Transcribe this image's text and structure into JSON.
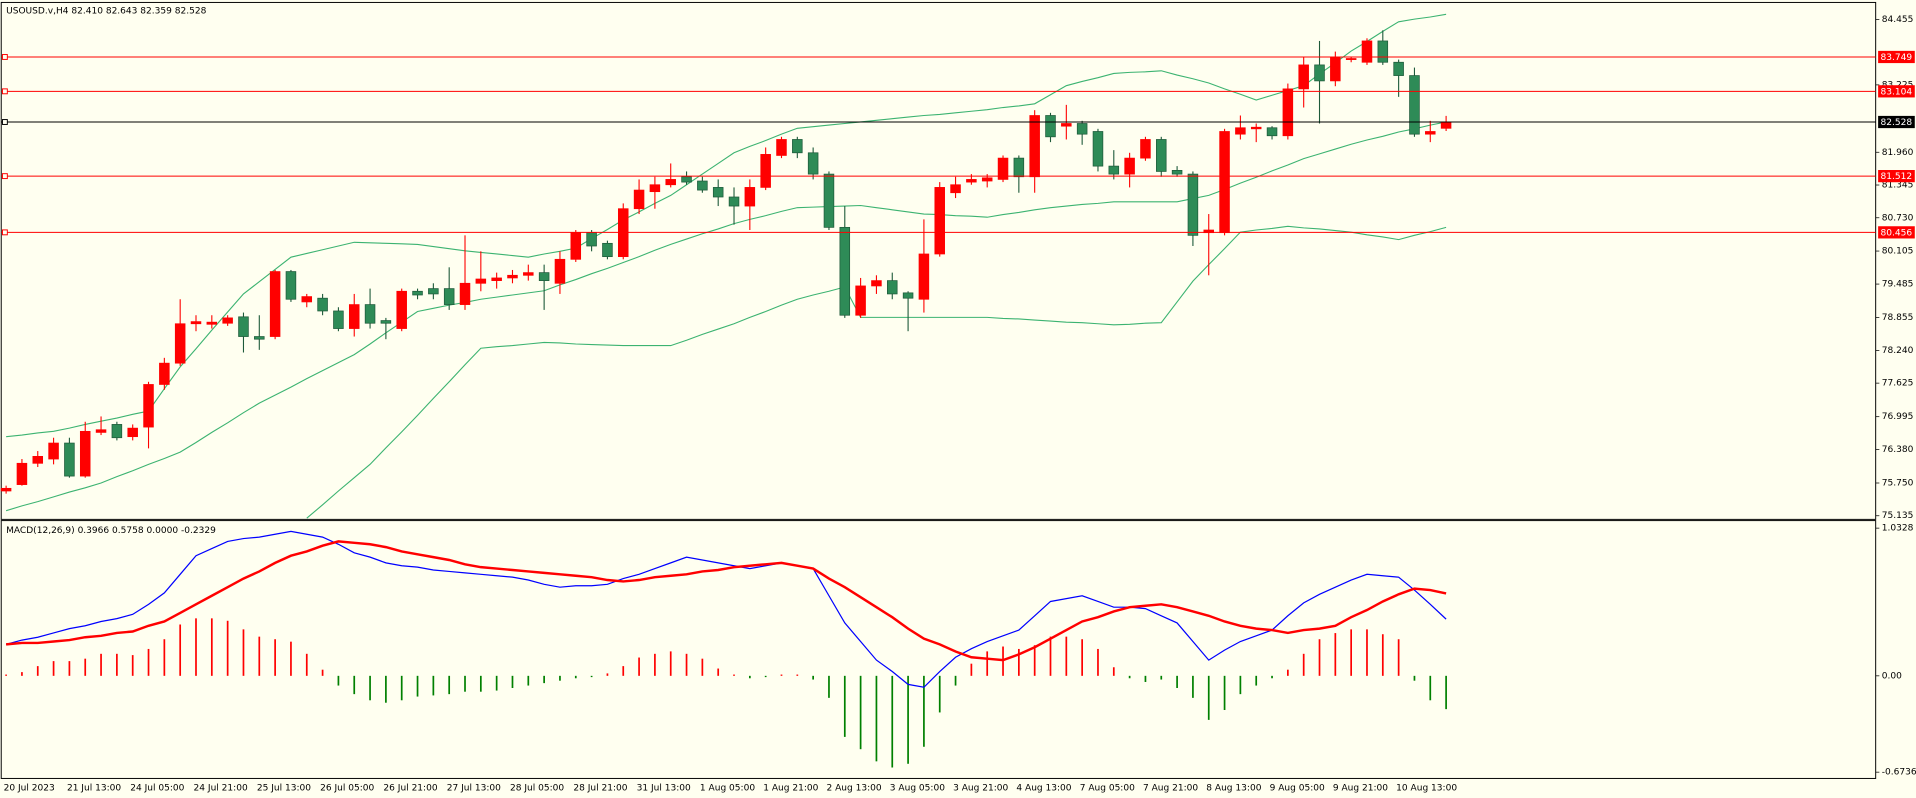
{
  "chart_data": [
    {
      "type": "candlestick",
      "title": "USOUSD.v,H4  82.410 82.643 82.359 82.528",
      "categories": [
        "20 Jul 2023",
        null,
        null,
        null,
        "21 Jul 13:00",
        null,
        null,
        null,
        "24 Jul 05:00",
        null,
        null,
        null,
        "24 Jul 21:00",
        null,
        null,
        null,
        "25 Jul 13:00",
        null,
        null,
        null,
        "26 Jul 05:00",
        null,
        null,
        null,
        "26 Jul 21:00",
        null,
        null,
        null,
        "27 Jul 13:00",
        null,
        null,
        null,
        "28 Jul 05:00",
        null,
        null,
        null,
        "28 Jul 21:00",
        null,
        null,
        null,
        "31 Jul 13:00",
        null,
        null,
        null,
        "1 Aug 05:00",
        null,
        null,
        null,
        "1 Aug 21:00",
        null,
        null,
        null,
        "2 Aug 13:00",
        null,
        null,
        null,
        "3 Aug 05:00",
        null,
        null,
        null,
        "3 Aug 21:00",
        null,
        null,
        null,
        "4 Aug 13:00",
        null,
        null,
        null,
        "7 Aug 05:00",
        null,
        null,
        null,
        "7 Aug 21:00",
        null,
        null,
        null,
        "8 Aug 13:00",
        null,
        null,
        null,
        "9 Aug 05:00",
        null,
        null,
        null,
        "9 Aug 21:00",
        null,
        null,
        null,
        "10 Aug 13:00",
        null,
        null,
        null
      ],
      "open": [
        75.6,
        75.72,
        76.12,
        76.2,
        76.5,
        75.88,
        76.7,
        76.85,
        76.62,
        76.8,
        77.6,
        78.0,
        78.74,
        78.73,
        78.75,
        78.87,
        78.5,
        78.5,
        79.72,
        79.15,
        79.22,
        78.98,
        78.65,
        79.1,
        78.8,
        78.65,
        79.35,
        79.4,
        79.4,
        79.1,
        79.5,
        79.55,
        79.6,
        79.65,
        79.7,
        79.5,
        79.95,
        80.45,
        80.25,
        80.0,
        80.9,
        81.22,
        81.35,
        81.5,
        81.42,
        81.3,
        81.12,
        80.95,
        81.3,
        81.9,
        82.2,
        81.95,
        81.55,
        80.55,
        78.9,
        79.45,
        79.55,
        79.32,
        79.2,
        80.05,
        81.2,
        81.4,
        81.42,
        81.45,
        81.85,
        81.5,
        82.65,
        82.45,
        82.5,
        82.35,
        81.7,
        81.55,
        81.85,
        82.2,
        81.62,
        81.55,
        80.45,
        80.45,
        82.3,
        82.4,
        82.42,
        82.27,
        83.15,
        83.6,
        83.3,
        83.7,
        83.65,
        84.05,
        83.65,
        83.4,
        82.3,
        82.41
      ],
      "high": [
        75.7,
        76.2,
        76.35,
        76.6,
        76.6,
        76.9,
        77.0,
        76.9,
        76.85,
        77.65,
        78.1,
        79.2,
        78.9,
        78.9,
        78.9,
        78.95,
        78.9,
        79.75,
        79.75,
        79.3,
        79.3,
        79.05,
        79.3,
        79.4,
        78.85,
        79.4,
        79.4,
        79.5,
        79.8,
        80.4,
        80.1,
        79.7,
        79.75,
        79.85,
        79.85,
        80.1,
        80.5,
        80.5,
        80.3,
        81.0,
        81.45,
        81.5,
        81.75,
        81.6,
        81.5,
        81.45,
        81.3,
        81.45,
        82.05,
        82.25,
        82.25,
        82.05,
        81.6,
        80.95,
        79.6,
        79.65,
        79.7,
        79.35,
        80.7,
        81.4,
        81.5,
        81.55,
        81.55,
        81.9,
        81.9,
        82.75,
        82.7,
        82.85,
        82.55,
        82.4,
        82.0,
        81.95,
        82.25,
        82.25,
        81.7,
        81.6,
        80.8,
        82.4,
        82.65,
        82.5,
        82.45,
        83.25,
        83.75,
        84.05,
        83.85,
        83.75,
        84.1,
        84.25,
        83.7,
        83.55,
        82.55,
        82.643
      ],
      "low": [
        75.55,
        75.7,
        76.05,
        76.1,
        75.85,
        75.85,
        76.65,
        76.55,
        76.55,
        76.4,
        77.5,
        77.95,
        78.6,
        78.65,
        78.7,
        78.2,
        78.25,
        78.45,
        79.15,
        79.05,
        78.9,
        78.6,
        78.5,
        78.65,
        78.45,
        78.6,
        79.2,
        79.2,
        79.0,
        79.0,
        79.35,
        79.4,
        79.5,
        79.55,
        79.0,
        79.3,
        79.9,
        80.1,
        79.95,
        79.95,
        80.8,
        80.9,
        81.3,
        81.35,
        81.2,
        80.95,
        80.6,
        80.5,
        81.25,
        81.85,
        81.85,
        81.45,
        80.5,
        78.85,
        78.85,
        79.3,
        79.2,
        78.6,
        78.95,
        80.0,
        81.1,
        81.35,
        81.3,
        81.4,
        81.2,
        81.2,
        82.15,
        82.2,
        82.1,
        81.6,
        81.45,
        81.3,
        81.8,
        81.5,
        81.5,
        80.2,
        79.65,
        80.4,
        82.2,
        82.15,
        82.2,
        82.2,
        82.8,
        82.5,
        83.2,
        83.65,
        83.6,
        83.6,
        83.0,
        82.25,
        82.15,
        82.359
      ],
      "close": [
        75.65,
        76.12,
        76.25,
        76.5,
        75.88,
        76.72,
        76.75,
        76.6,
        76.78,
        77.6,
        78.0,
        78.74,
        78.78,
        78.77,
        78.85,
        78.5,
        78.45,
        79.72,
        79.2,
        79.25,
        78.98,
        78.65,
        79.1,
        78.75,
        78.75,
        79.35,
        79.28,
        79.3,
        79.1,
        79.5,
        79.58,
        79.6,
        79.65,
        79.7,
        79.55,
        79.95,
        80.45,
        80.2,
        80.0,
        80.9,
        81.25,
        81.35,
        81.45,
        81.4,
        81.25,
        81.12,
        80.95,
        81.3,
        81.92,
        82.2,
        81.95,
        81.55,
        80.55,
        78.9,
        79.45,
        79.55,
        79.3,
        79.22,
        80.05,
        81.3,
        81.35,
        81.45,
        81.48,
        81.85,
        81.5,
        82.65,
        82.25,
        82.5,
        82.3,
        81.7,
        81.55,
        81.85,
        82.2,
        81.6,
        81.55,
        80.4,
        80.5,
        82.35,
        82.42,
        82.43,
        82.27,
        83.15,
        83.6,
        83.3,
        83.75,
        83.72,
        84.05,
        83.65,
        83.4,
        82.3,
        82.35,
        82.528
      ],
      "up_color": "#ff0000",
      "down_color": "#2e8b57",
      "overlays": [
        {
          "color": "#3cb371",
          "values": [
            76.62,
            76.65,
            76.69,
            76.72,
            76.78,
            76.85,
            76.91,
            76.97,
            77.04,
            77.1,
            77.52,
            77.93,
            78.27,
            78.62,
            78.96,
            79.3,
            79.53,
            79.76,
            79.99,
            80.06,
            80.13,
            80.2,
            80.27,
            80.26,
            80.25,
            80.24,
            80.23,
            80.19,
            80.15,
            80.11,
            80.08,
            80.05,
            80.02,
            79.99,
            80.05,
            80.1,
            80.16,
            80.34,
            80.51,
            80.69,
            80.84,
            81.0,
            81.15,
            81.35,
            81.55,
            81.75,
            81.95,
            82.07,
            82.18,
            82.3,
            82.41,
            82.44,
            82.47,
            82.5,
            82.53,
            82.56,
            82.59,
            82.62,
            82.65,
            82.67,
            82.7,
            82.73,
            82.76,
            82.8,
            82.83,
            82.87,
            83.04,
            83.21,
            83.29,
            83.36,
            83.44,
            83.46,
            83.47,
            83.49,
            83.41,
            83.34,
            83.26,
            83.15,
            83.05,
            82.94,
            83.03,
            83.12,
            83.21,
            83.43,
            83.64,
            83.86,
            84.04,
            84.23,
            84.41,
            84.46,
            84.5,
            84.55
          ]
        },
        {
          "color": "#3cb371",
          "values": [
            75.23,
            75.32,
            75.4,
            75.49,
            75.58,
            75.66,
            75.75,
            75.87,
            75.98,
            76.1,
            76.21,
            76.33,
            76.51,
            76.7,
            76.88,
            77.07,
            77.25,
            77.4,
            77.55,
            77.71,
            77.86,
            78.01,
            78.16,
            78.36,
            78.57,
            78.77,
            78.97,
            79.03,
            79.09,
            79.14,
            79.2,
            79.24,
            79.28,
            79.32,
            79.36,
            79.47,
            79.57,
            79.68,
            79.78,
            79.89,
            80.0,
            80.12,
            80.23,
            80.33,
            80.43,
            80.52,
            80.62,
            80.7,
            80.77,
            80.85,
            80.92,
            80.93,
            80.94,
            80.95,
            80.96,
            80.92,
            80.88,
            80.84,
            80.8,
            80.79,
            80.77,
            80.76,
            80.74,
            80.79,
            80.83,
            80.88,
            80.92,
            80.95,
            80.98,
            81.0,
            81.03,
            81.03,
            81.03,
            81.03,
            81.03,
            81.09,
            81.15,
            81.26,
            81.38,
            81.49,
            81.61,
            81.72,
            81.84,
            81.93,
            82.02,
            82.11,
            82.19,
            82.26,
            82.34,
            82.4,
            82.47,
            82.53
          ]
        },
        {
          "color": "#3cb371",
          "values": [
            null,
            null,
            null,
            null,
            null,
            null,
            null,
            null,
            null,
            null,
            null,
            null,
            null,
            null,
            null,
            null,
            null,
            null,
            null,
            75.09,
            75.34,
            75.6,
            75.85,
            76.1,
            76.41,
            76.71,
            77.02,
            77.34,
            77.65,
            77.97,
            78.28,
            78.31,
            78.33,
            78.36,
            78.39,
            78.38,
            78.36,
            78.35,
            78.34,
            78.33,
            78.33,
            78.33,
            78.33,
            78.43,
            78.54,
            78.64,
            78.74,
            78.86,
            78.97,
            79.09,
            79.2,
            79.28,
            79.35,
            79.43,
            78.86,
            78.86,
            78.86,
            78.86,
            78.86,
            78.86,
            78.86,
            78.86,
            78.86,
            78.84,
            78.83,
            78.81,
            78.79,
            78.77,
            78.76,
            78.74,
            78.72,
            78.73,
            78.75,
            78.76,
            79.15,
            79.54,
            79.85,
            80.15,
            80.46,
            80.5,
            80.53,
            80.57,
            80.54,
            80.52,
            80.49,
            80.46,
            80.41,
            80.37,
            80.32,
            80.4,
            80.47,
            80.55
          ]
        }
      ],
      "levels": [
        {
          "value": 83.749,
          "color": "#ff0000"
        },
        {
          "value": 83.104,
          "color": "#ff0000"
        },
        {
          "value": 82.528,
          "color": "#000000"
        },
        {
          "value": 81.512,
          "color": "#ff0000"
        },
        {
          "value": 80.456,
          "color": "#ff0000"
        }
      ],
      "ylim": [
        75.09,
        84.75
      ],
      "yticks": [
        84.455,
        83.225,
        {
          "value": 81.96,
          "label": "81.960"
        },
        81.345,
        {
          "value": 80.73,
          "label": "80.730"
        },
        80.105,
        79.485,
        78.855,
        {
          "value": 78.24,
          "label": "78.240"
        },
        77.625,
        76.995,
        {
          "value": 76.38,
          "label": "76.380"
        },
        {
          "value": 75.75,
          "label": "75.750"
        },
        75.135
      ]
    },
    {
      "type": "macd",
      "title": "MACD(12,26,9) 0.3966 0.5758 0.0000 -0.2329",
      "histogram": {
        "up_color": "#ff0000",
        "down_color": "#008000",
        "values": [
          0.009,
          0.026,
          0.068,
          0.103,
          0.103,
          0.12,
          0.154,
          0.154,
          0.145,
          0.188,
          0.256,
          0.359,
          0.402,
          0.402,
          0.385,
          0.325,
          0.274,
          0.256,
          0.239,
          0.154,
          0.043,
          -0.068,
          -0.128,
          -0.171,
          -0.188,
          -0.171,
          -0.145,
          -0.137,
          -0.128,
          -0.111,
          -0.111,
          -0.103,
          -0.085,
          -0.068,
          -0.051,
          -0.034,
          -0.017,
          -0.009,
          0.017,
          0.068,
          0.128,
          0.154,
          0.171,
          0.154,
          0.12,
          0.051,
          0.009,
          -0.017,
          -0.009,
          0.009,
          0.009,
          -0.026,
          -0.154,
          -0.427,
          -0.513,
          -0.598,
          -0.641,
          -0.615,
          -0.496,
          -0.256,
          -0.068,
          0.085,
          0.171,
          0.205,
          0.188,
          0.214,
          0.274,
          0.274,
          0.256,
          0.188,
          0.06,
          -0.017,
          -0.043,
          -0.026,
          -0.085,
          -0.154,
          -0.308,
          -0.239,
          -0.128,
          -0.068,
          -0.017,
          0.043,
          0.154,
          0.256,
          0.299,
          0.325,
          0.325,
          0.291,
          0.256,
          -0.034,
          -0.171,
          -0.2329
        ]
      },
      "series": [
        {
          "color": "#0000ff",
          "width": 1,
          "values": [
            0.22,
            0.25,
            0.27,
            0.3,
            0.33,
            0.35,
            0.38,
            0.4,
            0.43,
            0.5,
            0.58,
            0.71,
            0.84,
            0.89,
            0.94,
            0.96,
            0.97,
            0.99,
            1.01,
            0.99,
            0.97,
            0.92,
            0.86,
            0.83,
            0.79,
            0.77,
            0.76,
            0.74,
            0.73,
            0.72,
            0.71,
            0.7,
            0.69,
            0.67,
            0.64,
            0.62,
            0.63,
            0.63,
            0.64,
            0.68,
            0.71,
            0.75,
            0.79,
            0.83,
            0.81,
            0.79,
            0.77,
            0.75,
            0.77,
            0.79,
            0.77,
            0.75,
            0.56,
            0.37,
            0.24,
            0.11,
            0.03,
            -0.06,
            -0.08,
            0.03,
            0.13,
            0.19,
            0.24,
            0.28,
            0.32,
            0.42,
            0.52,
            0.54,
            0.56,
            0.52,
            0.48,
            0.48,
            0.47,
            0.42,
            0.37,
            0.24,
            0.11,
            0.18,
            0.24,
            0.28,
            0.32,
            0.42,
            0.51,
            0.57,
            0.62,
            0.67,
            0.71,
            0.7,
            0.69,
            0.6,
            0.5,
            0.3966
          ]
        },
        {
          "color": "#ff0000",
          "width": 2,
          "values": [
            0.22,
            0.23,
            0.23,
            0.24,
            0.25,
            0.27,
            0.28,
            0.3,
            0.31,
            0.35,
            0.38,
            0.44,
            0.5,
            0.56,
            0.62,
            0.68,
            0.73,
            0.79,
            0.84,
            0.87,
            0.91,
            0.94,
            0.93,
            0.92,
            0.9,
            0.87,
            0.85,
            0.83,
            0.81,
            0.78,
            0.76,
            0.75,
            0.74,
            0.73,
            0.72,
            0.71,
            0.7,
            0.69,
            0.67,
            0.66,
            0.67,
            0.69,
            0.7,
            0.71,
            0.73,
            0.74,
            0.76,
            0.77,
            0.78,
            0.79,
            0.77,
            0.75,
            0.68,
            0.62,
            0.55,
            0.48,
            0.41,
            0.33,
            0.26,
            0.22,
            0.17,
            0.13,
            0.12,
            0.11,
            0.15,
            0.2,
            0.26,
            0.32,
            0.38,
            0.41,
            0.45,
            0.48,
            0.49,
            0.5,
            0.48,
            0.45,
            0.42,
            0.38,
            0.35,
            0.33,
            0.32,
            0.3,
            0.32,
            0.33,
            0.35,
            0.41,
            0.46,
            0.52,
            0.57,
            0.61,
            0.6,
            0.5758
          ]
        }
      ],
      "ylim": [
        -0.709,
        1.077
      ],
      "yticks": [
        1.0328,
        {
          "value": 0,
          "label": "0.00"
        },
        -0.6736
      ]
    }
  ]
}
